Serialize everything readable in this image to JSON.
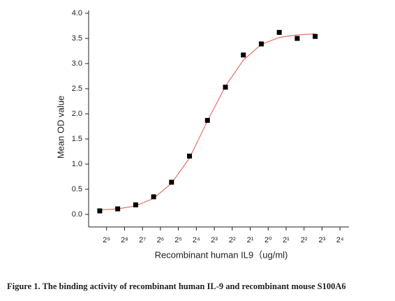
{
  "chart_data": {
    "type": "scatter",
    "xlabel": "Recombinant human  IL9（ug/ml)",
    "ylabel": "Mean OD value",
    "xscale": "log2",
    "xlim": [
      0.0009765625,
      22.627
    ],
    "xticks": [
      {
        "value": 0.001953125,
        "label": "2⁹"
      },
      {
        "value": 0.00390625,
        "label": "2⁸"
      },
      {
        "value": 0.0078125,
        "label": "2⁷"
      },
      {
        "value": 0.015625,
        "label": "2⁶"
      },
      {
        "value": 0.03125,
        "label": "2⁵"
      },
      {
        "value": 0.0625,
        "label": "2⁴"
      },
      {
        "value": 0.125,
        "label": "2³"
      },
      {
        "value": 0.25,
        "label": "2²"
      },
      {
        "value": 0.5,
        "label": "2¹"
      },
      {
        "value": 1,
        "label": "2⁰"
      },
      {
        "value": 2,
        "label": "2¹"
      },
      {
        "value": 4,
        "label": "2²"
      },
      {
        "value": 8,
        "label": "2³"
      },
      {
        "value": 16,
        "label": "2⁴"
      }
    ],
    "ylim": [
      -0.25,
      4.0
    ],
    "yticks": [
      {
        "value": 0,
        "label": "0.0"
      },
      0.5,
      {
        "value": 1,
        "label": "1.0"
      },
      1.5,
      {
        "value": 2,
        "label": "2.0"
      },
      2.5,
      {
        "value": 3,
        "label": "3.0"
      },
      3.5,
      {
        "value": 4,
        "label": "4.0"
      }
    ],
    "series": [
      {
        "type": "scatter",
        "color": "#000000",
        "x": [
          0.0015,
          0.003,
          0.006,
          0.012,
          0.024,
          0.048,
          0.096,
          0.192,
          0.384,
          0.768,
          1.536,
          3.072,
          6.144
        ],
        "values": [
          0.07,
          0.11,
          0.19,
          0.35,
          0.64,
          1.16,
          1.87,
          2.53,
          3.17,
          3.39,
          3.62,
          3.5,
          3.54
        ]
      },
      {
        "type": "line",
        "color": "#e8706a",
        "x": [
          0.0015,
          0.003,
          0.006,
          0.012,
          0.024,
          0.048,
          0.096,
          0.192,
          0.384,
          0.768,
          1.536,
          3.072,
          6.144
        ],
        "values": [
          0.09,
          0.11,
          0.17,
          0.32,
          0.62,
          1.12,
          1.86,
          2.55,
          3.07,
          3.38,
          3.52,
          3.57,
          3.59
        ]
      }
    ]
  },
  "caption": "Figure 1. The binding activity of recombinant human IL-9 and recombinant mouse S100A6"
}
